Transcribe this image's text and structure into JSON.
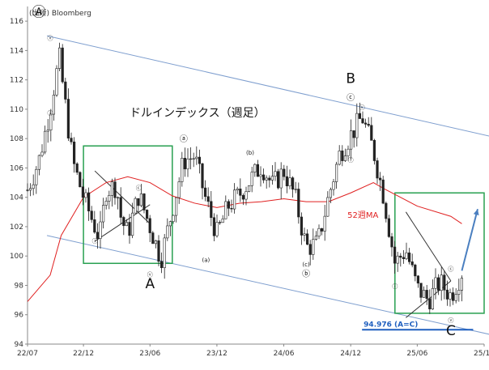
{
  "source": "(出所) Bloomberg",
  "chart_data": {
    "type": "candlestick",
    "title": "ドルインデックス（週足）",
    "xlabel": "",
    "ylabel": "",
    "x_ticks": [
      "22/07",
      "22/12",
      "23/06",
      "23/12",
      "24/06",
      "24/12",
      "25/06",
      "25/12"
    ],
    "y_ticks": [
      94,
      96,
      98,
      100,
      102,
      104,
      106,
      108,
      110,
      112,
      114,
      116
    ],
    "ylim": [
      94,
      117
    ],
    "grid": false,
    "series": [
      {
        "name": "52週MA",
        "type": "line",
        "color": "#e02020",
        "points": [
          [
            "22/07",
            96.9
          ],
          [
            "22/09",
            98.7
          ],
          [
            "22/10",
            101.4
          ],
          [
            "22/12",
            104.0
          ],
          [
            "23/02",
            105.0
          ],
          [
            "23/04",
            105.4
          ],
          [
            "23/06",
            105.0
          ],
          [
            "23/08",
            104.1
          ],
          [
            "23/10",
            103.6
          ],
          [
            "23/12",
            103.3
          ],
          [
            "24/02",
            103.6
          ],
          [
            "24/04",
            103.7
          ],
          [
            "24/06",
            103.9
          ],
          [
            "24/08",
            103.7
          ],
          [
            "24/10",
            103.7
          ],
          [
            "24/12",
            104.3
          ],
          [
            "25/02",
            105.0
          ],
          [
            "25/03",
            104.6
          ],
          [
            "25/06",
            103.4
          ],
          [
            "25/09",
            102.7
          ],
          [
            "25/10",
            102.2
          ]
        ]
      },
      {
        "name": "weekly",
        "type": "ohlc",
        "color": "#222222",
        "path": [
          [
            "22/07",
            104.5
          ],
          [
            "22/08",
            106.5
          ],
          [
            "22/09",
            110.0
          ],
          [
            "22/09",
            112.0
          ],
          [
            "22/09",
            113.5
          ],
          [
            "22/10",
            112.5
          ],
          [
            "22/11",
            106.5
          ],
          [
            "22/12",
            104.0
          ],
          [
            "23/01",
            102.0
          ],
          [
            "23/01",
            101.2
          ],
          [
            "23/02",
            104.5
          ],
          [
            "23/03",
            104.8
          ],
          [
            "23/03",
            102.5
          ],
          [
            "23/04",
            101.5
          ],
          [
            "23/05",
            104.2
          ],
          [
            "23/06",
            102.0
          ],
          [
            "23/07",
            99.8
          ],
          [
            "23/09",
            106.5
          ],
          [
            "23/10",
            106.8
          ],
          [
            "23/11",
            103.8
          ],
          [
            "23/12",
            101.5
          ],
          [
            "24/01",
            103.4
          ],
          [
            "24/02",
            104.2
          ],
          [
            "24/04",
            106.2
          ],
          [
            "24/05",
            104.8
          ],
          [
            "24/06",
            105.8
          ],
          [
            "24/07",
            104.1
          ],
          [
            "24/08",
            100.6
          ],
          [
            "24/09",
            100.8
          ],
          [
            "24/10",
            104.0
          ],
          [
            "24/11",
            107.0
          ],
          [
            "25/01",
            109.5
          ],
          [
            "25/02",
            107.2
          ],
          [
            "25/03",
            104.1
          ],
          [
            "25/04",
            99.5
          ],
          [
            "25/05",
            100.4
          ],
          [
            "25/06",
            97.8
          ],
          [
            "25/07",
            97.0
          ],
          [
            "25/08",
            98.2
          ],
          [
            "25/09",
            97.3
          ],
          [
            "25/10",
            98.9
          ]
        ]
      }
    ],
    "channel": {
      "upper": [
        [
          "22/09",
          115.0
        ],
        [
          "25/12",
          108.0
        ]
      ],
      "lower": [
        [
          "22/09",
          101.4
        ],
        [
          "25/12",
          94.5
        ]
      ]
    },
    "triangles": [
      {
        "lines": [
          [
            [
              "23/01",
              101.0
            ],
            [
              "23/06",
              103.5
            ]
          ],
          [
            [
              "23/01",
              105.8
            ],
            [
              "23/06",
              102.2
            ]
          ]
        ]
      },
      {
        "lines": [
          [
            [
              "25/05",
              95.8
            ],
            [
              "25/09",
              98.3
            ]
          ],
          [
            [
              "25/05",
              103.0
            ],
            [
              "25/09",
              98.3
            ]
          ]
        ]
      }
    ],
    "boxes": [
      {
        "x": [
          "22/12",
          "23/08"
        ],
        "y": [
          99.5,
          107.5
        ],
        "color": "#28a050"
      },
      {
        "x": [
          "25/04",
          "25/12"
        ],
        "y": [
          96.1,
          104.3
        ],
        "color": "#28a050"
      }
    ],
    "target_line": {
      "label": "94.976 (A=C)",
      "value": 94.976,
      "x": [
        "25/01",
        "25/11"
      ],
      "color": "#1f5fbf"
    },
    "arrow": {
      "from": [
        "25/10",
        99.0
      ],
      "to": [
        "25/12",
        103.2
      ],
      "color": "#4a7fc0"
    },
    "annotations": [
      {
        "text": "Ⓐ",
        "x": "22/08",
        "y": 116.3,
        "style": "big"
      },
      {
        "text": "A",
        "x": "23/06",
        "y": 97.8,
        "style": "big"
      },
      {
        "text": "B",
        "x": "24/12",
        "y": 111.8,
        "style": "big"
      },
      {
        "text": "C",
        "x": "25/09",
        "y": 94.6,
        "style": "big"
      },
      {
        "text": "ⓐ",
        "x": "23/09",
        "y": 107.8,
        "style": "medium"
      },
      {
        "text": "ⓑ",
        "x": "24/08",
        "y": 98.6,
        "style": "medium"
      },
      {
        "text": "ⓒ",
        "x": "24/12",
        "y": 110.6,
        "style": "medium"
      },
      {
        "text": "(a)",
        "x": "23/11",
        "y": 99.6,
        "style": "small"
      },
      {
        "text": "(b)",
        "x": "24/03",
        "y": 106.9,
        "style": "small"
      },
      {
        "text": "(c)",
        "x": "24/08",
        "y": 99.3,
        "style": "small"
      },
      {
        "text": "ⓥ",
        "x": "22/09",
        "y": 114.7,
        "style": "small"
      },
      {
        "text": "ⓘ",
        "x": "22/09",
        "y": 109.6,
        "style": "small"
      },
      {
        "text": "ⓒ",
        "x": "23/05",
        "y": 104.5,
        "style": "small"
      },
      {
        "text": "ⓘ",
        "x": "23/01",
        "y": 100.9,
        "style": "small"
      },
      {
        "text": "ⓥ",
        "x": "23/06",
        "y": 98.6,
        "style": "small"
      },
      {
        "text": "ⓥ",
        "x": "25/01",
        "y": 110.0,
        "style": "small"
      },
      {
        "text": "ⓘ",
        "x": "24/12",
        "y": 106.4,
        "style": "small"
      },
      {
        "text": "ⓘ",
        "x": "25/04",
        "y": 97.8,
        "style": "small"
      },
      {
        "text": "ⓒ",
        "x": "25/09",
        "y": 99.0,
        "style": "small"
      },
      {
        "text": "ⓥ",
        "x": "25/09",
        "y": 95.5,
        "style": "small"
      }
    ],
    "ma_label": {
      "text": "52週MA",
      "x": "25/01",
      "y": 102.6
    }
  }
}
